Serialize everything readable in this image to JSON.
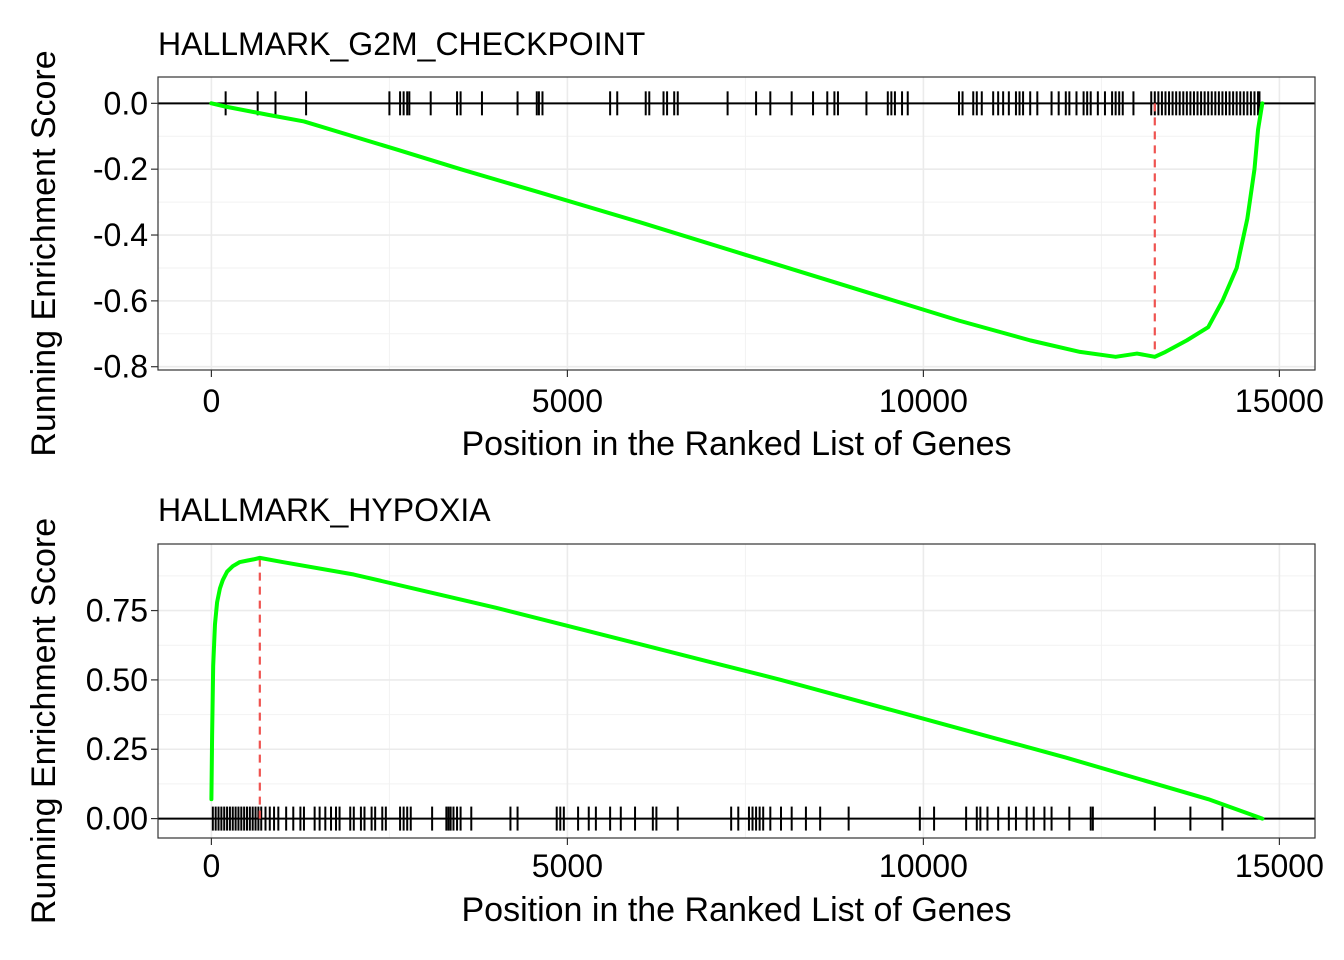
{
  "chart_data": [
    {
      "type": "line",
      "title": "HALLMARK_G2M_CHECKPOINT",
      "xlabel": "Position in the Ranked List of Genes",
      "ylabel": "Running Enrichment Score",
      "xlim": [
        -750,
        15500
      ],
      "ylim": [
        -0.81,
        0.08
      ],
      "x_ticks": [
        0,
        5000,
        10000,
        15000
      ],
      "x_tick_labels": [
        "0",
        "5000",
        "10000",
        "15000"
      ],
      "y_ticks": [
        0.0,
        -0.2,
        -0.4,
        -0.6,
        -0.8
      ],
      "y_tick_labels": [
        "0.0",
        "-0.2",
        "-0.4",
        "-0.6",
        "-0.8"
      ],
      "grid": true,
      "line_color": "#00ff00",
      "peak_line_color": "#ef5350",
      "peak_position": 13250,
      "series": [
        {
          "x": [
            0,
            200,
            800,
            1300,
            2600,
            3500,
            4600,
            6000,
            7500,
            9000,
            10500,
            11500,
            12200,
            12700,
            13000,
            13250,
            13400,
            13700,
            14000,
            14200,
            14400,
            14550,
            14650,
            14700,
            14760
          ],
          "y": [
            0.0,
            -0.01,
            -0.035,
            -0.055,
            -0.14,
            -0.2,
            -0.27,
            -0.36,
            -0.46,
            -0.56,
            -0.66,
            -0.72,
            -0.755,
            -0.77,
            -0.76,
            -0.77,
            -0.755,
            -0.72,
            -0.68,
            -0.6,
            -0.5,
            -0.35,
            -0.2,
            -0.08,
            0.0
          ]
        }
      ],
      "gene_hits": [
        200,
        650,
        900,
        1330,
        2500,
        2650,
        2700,
        2750,
        2780,
        3080,
        3450,
        3500,
        3800,
        4300,
        4570,
        4600,
        4650,
        5600,
        5700,
        6100,
        6150,
        6350,
        6400,
        6500,
        6550,
        7250,
        7650,
        7850,
        8150,
        8450,
        8650,
        8750,
        8800,
        9200,
        9500,
        9550,
        9600,
        9700,
        9780,
        10500,
        10550,
        10700,
        10750,
        10820,
        10980,
        11050,
        11120,
        11200,
        11300,
        11350,
        11400,
        11500,
        11600,
        11800,
        11900,
        12000,
        12050,
        12150,
        12250,
        12300,
        12350,
        12450,
        12550,
        12650,
        12700,
        12750,
        12800,
        12950,
        13200,
        13250,
        13300,
        13350,
        13400,
        13450,
        13500,
        13550,
        13600,
        13650,
        13700,
        13750,
        13800,
        13850,
        13900,
        13950,
        14000,
        14050,
        14100,
        14150,
        14200,
        14250,
        14300,
        14350,
        14400,
        14450,
        14500,
        14550,
        14600,
        14650,
        14700,
        14720
      ]
    },
    {
      "type": "line",
      "title": "HALLMARK_HYPOXIA",
      "xlabel": "Position in the Ranked List of Genes",
      "ylabel": "Running Enrichment Score",
      "xlim": [
        -750,
        15500
      ],
      "ylim": [
        -0.07,
        0.99
      ],
      "x_ticks": [
        0,
        5000,
        10000,
        15000
      ],
      "x_tick_labels": [
        "0",
        "5000",
        "10000",
        "15000"
      ],
      "y_ticks": [
        0.0,
        0.25,
        0.5,
        0.75
      ],
      "y_tick_labels": [
        "0.00",
        "0.25",
        "0.50",
        "0.75"
      ],
      "grid": true,
      "line_color": "#00ff00",
      "peak_line_color": "#ef5350",
      "peak_position": 680,
      "series": [
        {
          "x": [
            0,
            10,
            25,
            50,
            80,
            120,
            160,
            220,
            300,
            400,
            500,
            600,
            680,
            1000,
            2000,
            3000,
            4000,
            5000,
            6000,
            7000,
            8000,
            9000,
            10000,
            11000,
            12000,
            13000,
            14000,
            14760
          ],
          "y": [
            0.07,
            0.3,
            0.55,
            0.7,
            0.78,
            0.83,
            0.86,
            0.89,
            0.91,
            0.925,
            0.93,
            0.935,
            0.94,
            0.925,
            0.88,
            0.82,
            0.76,
            0.695,
            0.63,
            0.565,
            0.5,
            0.43,
            0.36,
            0.29,
            0.22,
            0.145,
            0.07,
            0.0
          ]
        }
      ],
      "gene_hits": [
        20,
        60,
        100,
        140,
        180,
        220,
        260,
        300,
        340,
        380,
        420,
        460,
        500,
        540,
        580,
        620,
        660,
        700,
        760,
        820,
        880,
        940,
        1050,
        1150,
        1250,
        1300,
        1450,
        1520,
        1600,
        1680,
        1750,
        1800,
        1950,
        2000,
        2100,
        2150,
        2250,
        2300,
        2400,
        2450,
        2650,
        2700,
        2750,
        2800,
        3100,
        3300,
        3330,
        3360,
        3400,
        3450,
        3500,
        3650,
        4200,
        4300,
        4850,
        4900,
        4950,
        5150,
        5300,
        5400,
        5600,
        5750,
        5950,
        6200,
        6250,
        6550,
        7300,
        7400,
        7550,
        7600,
        7650,
        7700,
        7750,
        7850,
        8000,
        8150,
        8350,
        8550,
        8950,
        9950,
        10150,
        10600,
        10750,
        10800,
        10900,
        11050,
        11200,
        11300,
        11450,
        11550,
        11700,
        11800,
        12050,
        12350,
        12380,
        13250,
        13750,
        14200
      ]
    }
  ]
}
